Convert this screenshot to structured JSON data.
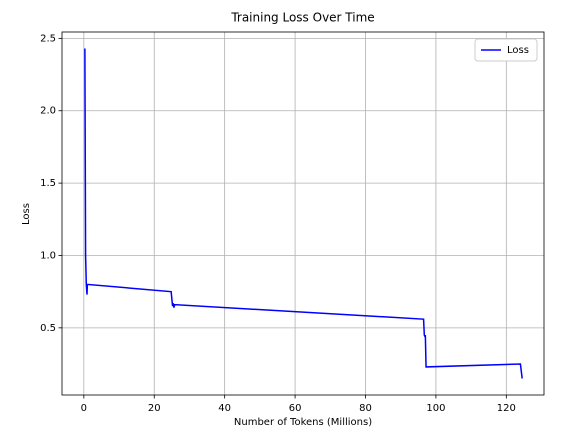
{
  "chart_data": {
    "type": "line",
    "title": "Training Loss Over Time",
    "x_label": "Number of Tokens (Millions)",
    "y_label": "Loss",
    "x": [
      0.3,
      0.5,
      0.7,
      0.9,
      1.0,
      24.8,
      25.0,
      25.2,
      25.4,
      25.6,
      25.8,
      96.5,
      96.7,
      96.9,
      97.0,
      97.2,
      124.0,
      124.5
    ],
    "series": [
      {
        "name": "Loss",
        "color": "#0000ff",
        "values": [
          2.43,
          1.0,
          0.8,
          0.73,
          0.8,
          0.75,
          0.7,
          0.65,
          0.67,
          0.64,
          0.66,
          0.56,
          0.45,
          0.44,
          0.45,
          0.23,
          0.25,
          0.15
        ]
      }
    ],
    "xlim": [
      -6.2,
      130.7
    ],
    "xticks": [
      0,
      20,
      40,
      60,
      80,
      100,
      120
    ],
    "ylim": [
      0.036,
      2.544
    ],
    "yticks": [
      0.5,
      1.0,
      1.5,
      2.0,
      2.5
    ],
    "grid": true,
    "legend": "upper right"
  }
}
